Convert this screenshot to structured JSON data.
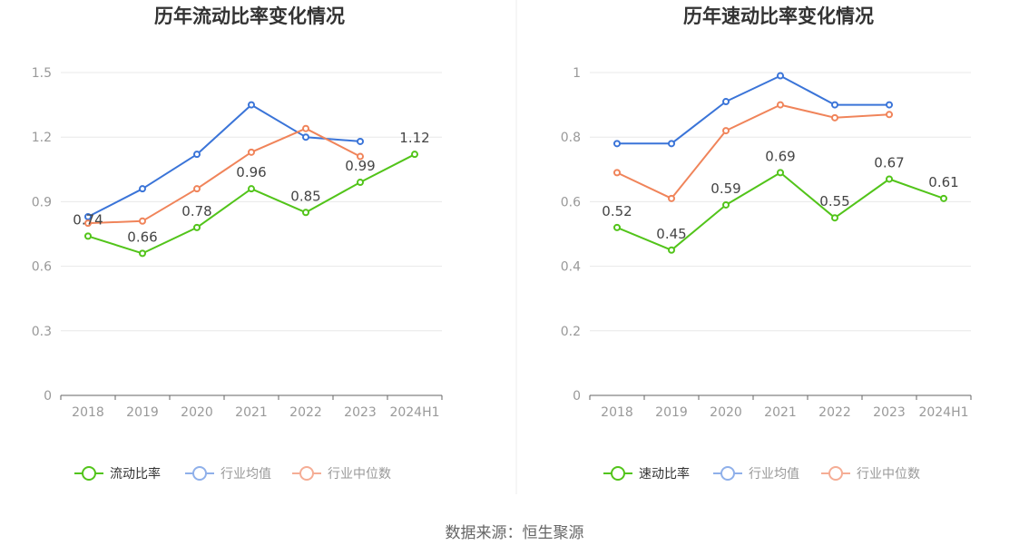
{
  "colors": {
    "primary": "#52c41a",
    "industry_avg": "#3a74d8",
    "industry_median": "#f0845a",
    "legend_avg": "#8fb0ea",
    "legend_median": "#f5ad95",
    "grid": "#e8e8e8",
    "axis": "#666666"
  },
  "source": "数据来源：恒生聚源",
  "chart_data": [
    {
      "type": "line",
      "title": "历年流动比率变化情况",
      "categories": [
        "2018",
        "2019",
        "2020",
        "2021",
        "2022",
        "2023",
        "2024H1"
      ],
      "ylim": [
        0,
        1.5
      ],
      "yticks": [
        "0",
        "0.3",
        "0.6",
        "0.9",
        "1.2",
        "1.5"
      ],
      "series": [
        {
          "name": "流动比率",
          "values": [
            0.74,
            0.66,
            0.78,
            0.96,
            0.85,
            0.99,
            1.12
          ],
          "labels": [
            "0.74",
            "0.66",
            "0.78",
            "0.96",
            "0.85",
            "0.99",
            "1.12"
          ]
        },
        {
          "name": "行业均值",
          "values": [
            0.83,
            0.96,
            1.12,
            1.35,
            1.2,
            1.18,
            null
          ]
        },
        {
          "name": "行业中位数",
          "values": [
            0.8,
            0.81,
            0.96,
            1.13,
            1.24,
            1.11,
            null
          ]
        }
      ]
    },
    {
      "type": "line",
      "title": "历年速动比率变化情况",
      "categories": [
        "2018",
        "2019",
        "2020",
        "2021",
        "2022",
        "2023",
        "2024H1"
      ],
      "ylim": [
        0,
        1
      ],
      "yticks": [
        "0",
        "0.2",
        "0.4",
        "0.6",
        "0.8",
        "1"
      ],
      "series": [
        {
          "name": "速动比率",
          "values": [
            0.52,
            0.45,
            0.59,
            0.69,
            0.55,
            0.67,
            0.61
          ],
          "labels": [
            "0.52",
            "0.45",
            "0.59",
            "0.69",
            "0.55",
            "0.67",
            "0.61"
          ]
        },
        {
          "name": "行业均值",
          "values": [
            0.78,
            0.78,
            0.91,
            0.99,
            0.9,
            0.9,
            null
          ]
        },
        {
          "name": "行业中位数",
          "values": [
            0.69,
            0.61,
            0.82,
            0.9,
            0.86,
            0.87,
            null
          ]
        }
      ]
    }
  ]
}
